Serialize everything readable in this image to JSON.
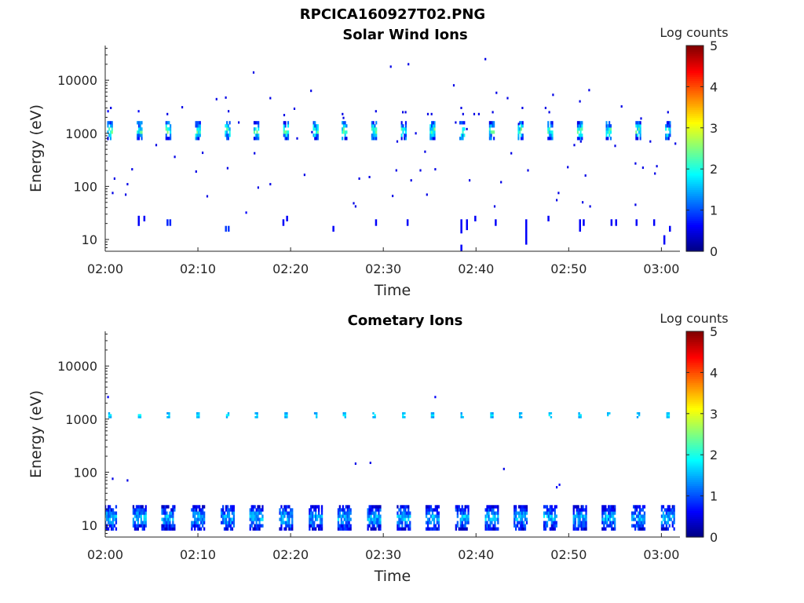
{
  "figure_title": "RPCICA160927T02.PNG",
  "chart_data": [
    {
      "type": "heatmap",
      "title": "Solar Wind Ions",
      "xlabel": "Time",
      "ylabel": "Energy (eV)",
      "x_scale": "time",
      "y_scale": "log",
      "xlim": [
        "02:00",
        "03:02"
      ],
      "ylim": [
        6,
        45000
      ],
      "x_ticks": [
        "02:00",
        "02:10",
        "02:20",
        "02:30",
        "02:40",
        "02:50",
        "03:00"
      ],
      "y_ticks": [
        {
          "value": 10,
          "label": "10"
        },
        {
          "value": 100,
          "label": "100"
        },
        {
          "value": 1000,
          "label": "1000"
        },
        {
          "value": 10000,
          "label": "10000"
        }
      ],
      "colorbar": {
        "label": "Log counts",
        "min": 0,
        "max": 5,
        "ticks": [
          "0",
          "1",
          "2",
          "3",
          "4",
          "5"
        ],
        "colormap": "jet"
      },
      "sweep_times_min": [
        0.5,
        3.7,
        6.8,
        10.0,
        13.2,
        16.3,
        19.5,
        22.7,
        25.8,
        29.0,
        32.2,
        35.3,
        38.5,
        41.7,
        44.8,
        48.0,
        51.2,
        54.3,
        57.5,
        60.7
      ],
      "bands": [
        {
          "energy_min": 750,
          "energy_max": 1700,
          "log_counts_min": 0.5,
          "log_counts_max": 2.8,
          "width_min": 0.6
        }
      ],
      "scatter_points": [
        {
          "t": 0.3,
          "e": 2600,
          "c": 0.6
        },
        {
          "t": 0.6,
          "e": 3000,
          "c": 0.5
        },
        {
          "t": 1.0,
          "e": 140,
          "c": 0.5
        },
        {
          "t": 0.8,
          "e": 75,
          "c": 0.5
        },
        {
          "t": 2.4,
          "e": 110,
          "c": 0.5
        },
        {
          "t": 2.2,
          "e": 70,
          "c": 0.5
        },
        {
          "t": 2.9,
          "e": 210,
          "c": 0.5
        },
        {
          "t": 3.6,
          "e": 2600,
          "c": 0.6
        },
        {
          "t": 5.5,
          "e": 600,
          "c": 0.5
        },
        {
          "t": 6.7,
          "e": 2300,
          "c": 0.5
        },
        {
          "t": 7.5,
          "e": 360,
          "c": 0.5
        },
        {
          "t": 8.3,
          "e": 3100,
          "c": 0.5
        },
        {
          "t": 9.8,
          "e": 190,
          "c": 0.5
        },
        {
          "t": 10.5,
          "e": 430,
          "c": 0.5
        },
        {
          "t": 11.0,
          "e": 65,
          "c": 0.5
        },
        {
          "t": 12.0,
          "e": 4400,
          "c": 0.5
        },
        {
          "t": 13.0,
          "e": 4700,
          "c": 0.5
        },
        {
          "t": 13.2,
          "e": 220,
          "c": 0.5
        },
        {
          "t": 13.3,
          "e": 2600,
          "c": 0.5
        },
        {
          "t": 14.4,
          "e": 1600,
          "c": 0.5
        },
        {
          "t": 15.2,
          "e": 32,
          "c": 0.6
        },
        {
          "t": 16.0,
          "e": 14000,
          "c": 0.5
        },
        {
          "t": 16.1,
          "e": 420,
          "c": 0.5
        },
        {
          "t": 16.5,
          "e": 95,
          "c": 0.5
        },
        {
          "t": 17.8,
          "e": 4600,
          "c": 0.5
        },
        {
          "t": 17.8,
          "e": 110,
          "c": 0.5
        },
        {
          "t": 19.3,
          "e": 2200,
          "c": 0.5
        },
        {
          "t": 20.4,
          "e": 2900,
          "c": 0.5
        },
        {
          "t": 20.7,
          "e": 800,
          "c": 0.5
        },
        {
          "t": 21.5,
          "e": 165,
          "c": 0.5
        },
        {
          "t": 22.2,
          "e": 6300,
          "c": 0.5
        },
        {
          "t": 22.3,
          "e": 1050,
          "c": 0.5
        },
        {
          "t": 25.6,
          "e": 2300,
          "c": 0.5
        },
        {
          "t": 25.7,
          "e": 1950,
          "c": 0.5
        },
        {
          "t": 26.8,
          "e": 48,
          "c": 0.5
        },
        {
          "t": 27.0,
          "e": 42,
          "c": 0.5
        },
        {
          "t": 27.4,
          "e": 140,
          "c": 0.5
        },
        {
          "t": 28.5,
          "e": 150,
          "c": 0.5
        },
        {
          "t": 29.2,
          "e": 2600,
          "c": 0.5
        },
        {
          "t": 30.8,
          "e": 18000,
          "c": 0.5
        },
        {
          "t": 31.0,
          "e": 66,
          "c": 0.5
        },
        {
          "t": 31.4,
          "e": 200,
          "c": 0.5
        },
        {
          "t": 31.5,
          "e": 700,
          "c": 0.5
        },
        {
          "t": 32.1,
          "e": 2500,
          "c": 0.5
        },
        {
          "t": 32.4,
          "e": 2500,
          "c": 0.5
        },
        {
          "t": 32.7,
          "e": 20000,
          "c": 0.5
        },
        {
          "t": 33.0,
          "e": 130,
          "c": 0.5
        },
        {
          "t": 33.5,
          "e": 1000,
          "c": 0.5
        },
        {
          "t": 34.0,
          "e": 200,
          "c": 0.5
        },
        {
          "t": 34.5,
          "e": 450,
          "c": 0.5
        },
        {
          "t": 34.8,
          "e": 2300,
          "c": 0.5
        },
        {
          "t": 35.2,
          "e": 2300,
          "c": 0.5
        },
        {
          "t": 35.6,
          "e": 210,
          "c": 0.5
        },
        {
          "t": 34.7,
          "e": 70,
          "c": 0.5
        },
        {
          "t": 37.6,
          "e": 8000,
          "c": 0.5
        },
        {
          "t": 37.8,
          "e": 1600,
          "c": 0.5
        },
        {
          "t": 38.4,
          "e": 3000,
          "c": 0.5
        },
        {
          "t": 38.6,
          "e": 2300,
          "c": 0.5
        },
        {
          "t": 39.0,
          "e": 1200,
          "c": 0.5
        },
        {
          "t": 39.3,
          "e": 130,
          "c": 0.5
        },
        {
          "t": 39.8,
          "e": 2300,
          "c": 0.5
        },
        {
          "t": 40.3,
          "e": 2300,
          "c": 0.5
        },
        {
          "t": 41.0,
          "e": 25000,
          "c": 0.5
        },
        {
          "t": 41.8,
          "e": 2500,
          "c": 0.5
        },
        {
          "t": 42.0,
          "e": 42,
          "c": 0.5
        },
        {
          "t": 42.2,
          "e": 5800,
          "c": 0.5
        },
        {
          "t": 42.7,
          "e": 120,
          "c": 0.5
        },
        {
          "t": 43.4,
          "e": 4600,
          "c": 0.5
        },
        {
          "t": 43.8,
          "e": 420,
          "c": 0.5
        },
        {
          "t": 44.6,
          "e": 1500,
          "c": 0.5
        },
        {
          "t": 45.0,
          "e": 3000,
          "c": 0.5
        },
        {
          "t": 45.6,
          "e": 200,
          "c": 0.5
        },
        {
          "t": 47.5,
          "e": 3000,
          "c": 0.5
        },
        {
          "t": 47.9,
          "e": 2500,
          "c": 0.5
        },
        {
          "t": 48.3,
          "e": 5300,
          "c": 0.5
        },
        {
          "t": 48.9,
          "e": 75,
          "c": 0.5
        },
        {
          "t": 48.7,
          "e": 55,
          "c": 0.5
        },
        {
          "t": 49.9,
          "e": 230,
          "c": 0.5
        },
        {
          "t": 50.6,
          "e": 600,
          "c": 0.5
        },
        {
          "t": 51.2,
          "e": 4000,
          "c": 0.5
        },
        {
          "t": 51.3,
          "e": 700,
          "c": 0.5
        },
        {
          "t": 51.8,
          "e": 160,
          "c": 0.5
        },
        {
          "t": 52.2,
          "e": 6500,
          "c": 0.5
        },
        {
          "t": 51.5,
          "e": 50,
          "c": 0.5
        },
        {
          "t": 52.3,
          "e": 42,
          "c": 0.5
        },
        {
          "t": 55.0,
          "e": 580,
          "c": 0.5
        },
        {
          "t": 55.7,
          "e": 3200,
          "c": 0.5
        },
        {
          "t": 57.8,
          "e": 1900,
          "c": 0.5
        },
        {
          "t": 57.2,
          "e": 270,
          "c": 0.5
        },
        {
          "t": 58.0,
          "e": 225,
          "c": 0.5
        },
        {
          "t": 58.8,
          "e": 700,
          "c": 0.5
        },
        {
          "t": 59.3,
          "e": 175,
          "c": 0.5
        },
        {
          "t": 59.5,
          "e": 240,
          "c": 0.5
        },
        {
          "t": 60.7,
          "e": 2500,
          "c": 0.5
        },
        {
          "t": 61.5,
          "e": 640,
          "c": 0.5
        },
        {
          "t": 57.2,
          "e": 45,
          "c": 0.5
        }
      ],
      "vertical_streaks": [
        {
          "t": 3.6,
          "e_min": 18,
          "e_max": 28,
          "c": 0.6
        },
        {
          "t": 4.2,
          "e_min": 22,
          "e_max": 28,
          "c": 0.6
        },
        {
          "t": 6.7,
          "e_min": 18,
          "e_max": 24,
          "c": 0.8
        },
        {
          "t": 7.0,
          "e_min": 18,
          "e_max": 24,
          "c": 0.8
        },
        {
          "t": 13.0,
          "e_min": 14,
          "e_max": 18,
          "c": 0.9
        },
        {
          "t": 13.3,
          "e_min": 14,
          "e_max": 18,
          "c": 0.9
        },
        {
          "t": 19.2,
          "e_min": 18,
          "e_max": 24,
          "c": 0.6
        },
        {
          "t": 19.6,
          "e_min": 22,
          "e_max": 28,
          "c": 0.6
        },
        {
          "t": 24.6,
          "e_min": 14,
          "e_max": 18,
          "c": 0.6
        },
        {
          "t": 29.2,
          "e_min": 18,
          "e_max": 24,
          "c": 0.6
        },
        {
          "t": 32.6,
          "e_min": 18,
          "e_max": 24,
          "c": 0.6
        },
        {
          "t": 38.4,
          "e_min": 13,
          "e_max": 24,
          "c": 0.6
        },
        {
          "t": 39.0,
          "e_min": 15,
          "e_max": 24,
          "c": 0.6
        },
        {
          "t": 39.9,
          "e_min": 22,
          "e_max": 28,
          "c": 0.6
        },
        {
          "t": 42.1,
          "e_min": 18,
          "e_max": 24,
          "c": 0.6
        },
        {
          "t": 45.4,
          "e_min": 8,
          "e_max": 24,
          "c": 0.6
        },
        {
          "t": 47.8,
          "e_min": 22,
          "e_max": 28,
          "c": 0.6
        },
        {
          "t": 51.2,
          "e_min": 14,
          "e_max": 24,
          "c": 0.6
        },
        {
          "t": 51.6,
          "e_min": 18,
          "e_max": 24,
          "c": 0.6
        },
        {
          "t": 54.6,
          "e_min": 18,
          "e_max": 24,
          "c": 0.6
        },
        {
          "t": 55.1,
          "e_min": 18,
          "e_max": 24,
          "c": 0.6
        },
        {
          "t": 57.3,
          "e_min": 18,
          "e_max": 24,
          "c": 0.6
        },
        {
          "t": 60.3,
          "e_min": 8,
          "e_max": 12,
          "c": 0.6
        },
        {
          "t": 60.9,
          "e_min": 14,
          "e_max": 18,
          "c": 0.6
        },
        {
          "t": 59.2,
          "e_min": 18,
          "e_max": 24,
          "c": 0.6
        },
        {
          "t": 38.4,
          "e_min": 6,
          "e_max": 8,
          "c": 0.6
        }
      ]
    },
    {
      "type": "heatmap",
      "title": "Cometary Ions",
      "xlabel": "Time",
      "ylabel": "Energy (eV)",
      "x_scale": "time",
      "y_scale": "log",
      "xlim": [
        "02:00",
        "03:02"
      ],
      "ylim": [
        6,
        45000
      ],
      "x_ticks": [
        "02:00",
        "02:10",
        "02:20",
        "02:30",
        "02:40",
        "02:50",
        "03:00"
      ],
      "y_ticks": [
        {
          "value": 10,
          "label": "10"
        },
        {
          "value": 100,
          "label": "100"
        },
        {
          "value": 1000,
          "label": "1000"
        },
        {
          "value": 10000,
          "label": "10000"
        }
      ],
      "colorbar": {
        "label": "Log counts",
        "min": 0,
        "max": 5,
        "ticks": [
          "0",
          "1",
          "2",
          "3",
          "4",
          "5"
        ],
        "colormap": "jet"
      },
      "sweep_times_min": [
        0.5,
        3.7,
        6.8,
        10.0,
        13.2,
        16.3,
        19.5,
        22.7,
        25.8,
        29.0,
        32.2,
        35.3,
        38.5,
        41.7,
        44.8,
        48.0,
        51.2,
        54.3,
        57.5,
        60.7
      ],
      "bands": [
        {
          "energy_min": 1050,
          "energy_max": 1350,
          "log_counts_min": 1.3,
          "log_counts_max": 1.9,
          "width_min": 0.35
        },
        {
          "energy_min": 8,
          "energy_max": 24,
          "log_counts_min": 0.3,
          "log_counts_max": 2.0,
          "width_min": 1.5
        }
      ],
      "scatter_points": [
        {
          "t": 0.3,
          "e": 2600,
          "c": 0.6
        },
        {
          "t": 0.8,
          "e": 75,
          "c": 0.5
        },
        {
          "t": 2.4,
          "e": 70,
          "c": 0.5
        },
        {
          "t": 27.0,
          "e": 145,
          "c": 0.5
        },
        {
          "t": 28.6,
          "e": 150,
          "c": 0.5
        },
        {
          "t": 35.6,
          "e": 2600,
          "c": 0.6
        },
        {
          "t": 43.0,
          "e": 115,
          "c": 0.5
        },
        {
          "t": 49.0,
          "e": 58,
          "c": 0.6
        },
        {
          "t": 48.7,
          "e": 52,
          "c": 0.6
        }
      ],
      "vertical_streaks": []
    }
  ]
}
